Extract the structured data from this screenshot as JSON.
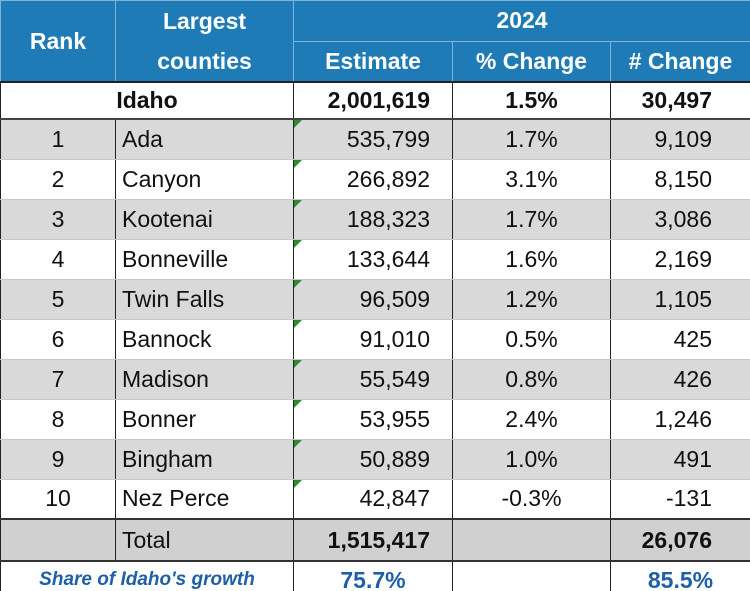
{
  "header": {
    "rank": "Rank",
    "counties": "Largest counties",
    "year": "2024",
    "estimate": "Estimate",
    "pct_change": "% Change",
    "num_change": "# Change"
  },
  "state_row": {
    "name": "Idaho",
    "estimate": "2,001,619",
    "pct_change": "1.5%",
    "num_change": "30,497"
  },
  "rows": [
    [
      "1",
      "Ada",
      "535,799",
      "1.7%",
      "9,109"
    ],
    [
      "2",
      "Canyon",
      "266,892",
      "3.1%",
      "8,150"
    ],
    [
      "3",
      "Kootenai",
      "188,323",
      "1.7%",
      "3,086"
    ],
    [
      "4",
      "Bonneville",
      "133,644",
      "1.6%",
      "2,169"
    ],
    [
      "5",
      "Twin Falls",
      "96,509",
      "1.2%",
      "1,105"
    ],
    [
      "6",
      "Bannock",
      "91,010",
      "0.5%",
      "425"
    ],
    [
      "7",
      "Madison",
      "55,549",
      "0.8%",
      "426"
    ],
    [
      "8",
      "Bonner",
      "53,955",
      "2.4%",
      "1,246"
    ],
    [
      "9",
      "Bingham",
      "50,889",
      "1.0%",
      "491"
    ],
    [
      "10",
      "Nez Perce",
      "42,847",
      "-0.3%",
      "-131"
    ]
  ],
  "total_row": {
    "label": "Total",
    "estimate": "1,515,417",
    "num_change": "26,076"
  },
  "share_row": {
    "label": "Share of Idaho's growth",
    "estimate": "75.7%",
    "num_change": "85.5%"
  }
}
